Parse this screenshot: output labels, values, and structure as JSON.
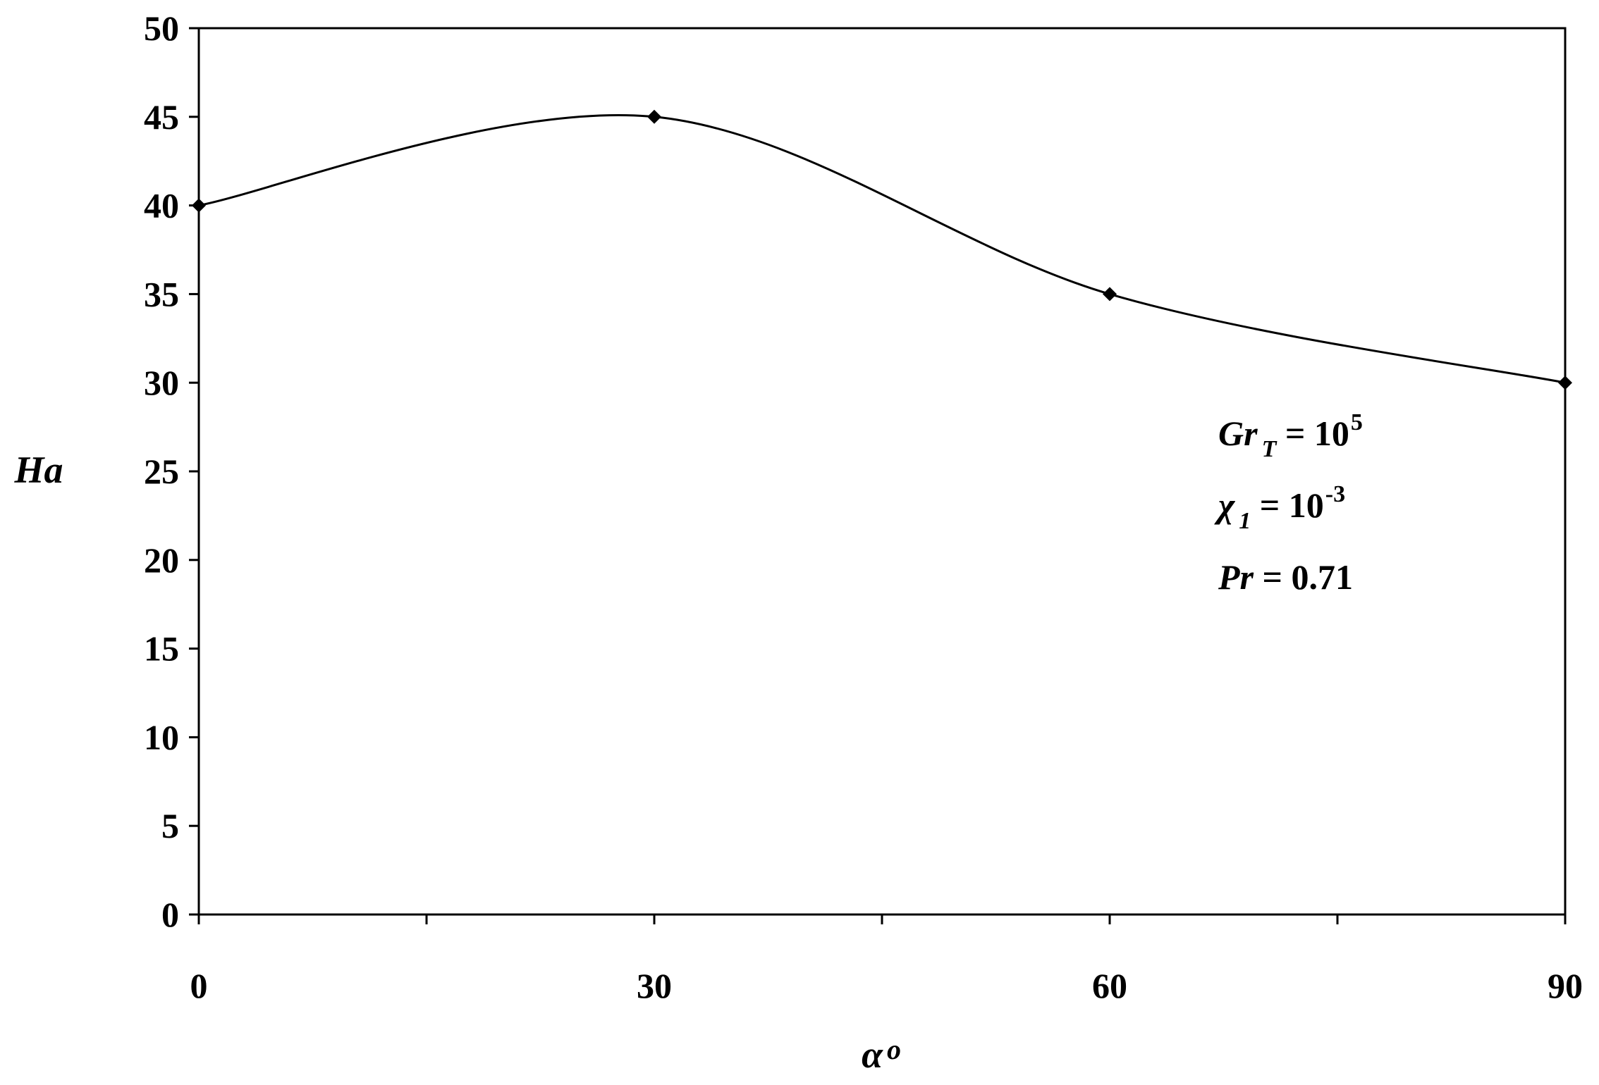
{
  "chart_data": {
    "type": "line",
    "xlabel": "α",
    "xlabel_suffix": "o",
    "ylabel": "Ha",
    "x": [
      0,
      30,
      60,
      90
    ],
    "series": [
      {
        "values": [
          40,
          45,
          35,
          30
        ]
      }
    ],
    "xlim": [
      0,
      90
    ],
    "ylim": [
      0,
      50
    ],
    "x_ticks": [
      0,
      30,
      60,
      90
    ],
    "y_ticks": [
      0,
      5,
      10,
      15,
      20,
      25,
      30,
      35,
      40,
      45,
      50
    ],
    "grid": false,
    "line_color": "#000000",
    "marker": "diamond",
    "annotations": [
      {
        "base": "Gr",
        "sub": "T",
        "eq": " = 10",
        "sup": "5"
      },
      {
        "base": "χ",
        "sub": "1",
        "eq": " = 10",
        "sup": "-3"
      },
      {
        "base": "Pr",
        "sub": "",
        "eq": " = 0.71",
        "sup": ""
      }
    ]
  }
}
